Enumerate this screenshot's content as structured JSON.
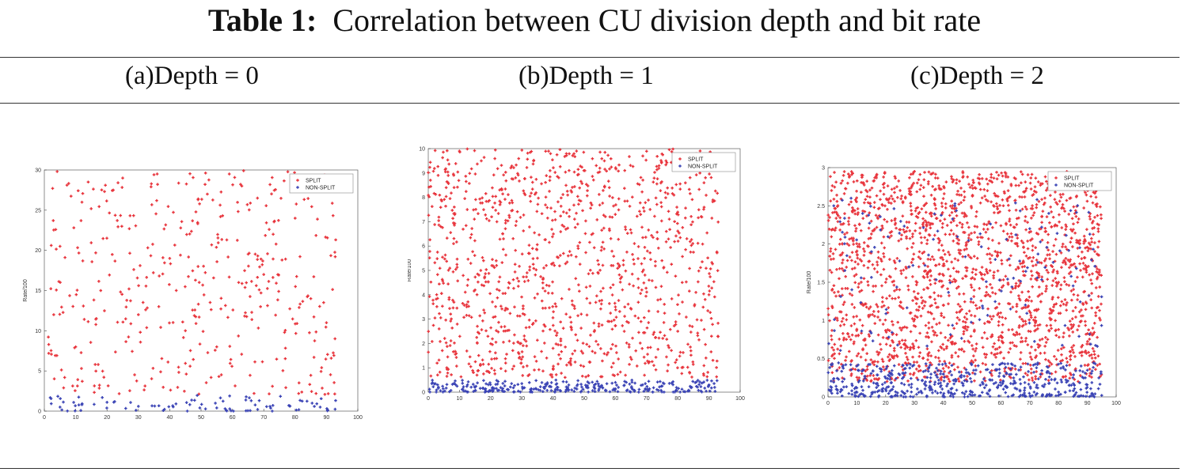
{
  "table": {
    "label": "Table 1:",
    "caption": "Correlation between CU division depth and bit rate",
    "columns": [
      "(a)Depth = 0",
      "(b)Depth = 1",
      "(c)Depth = 2"
    ]
  },
  "colors": {
    "split": "#e8343c",
    "non_split": "#3a43b5",
    "axis": "#444444"
  },
  "chart_data": [
    {
      "type": "scatter",
      "title": "",
      "xlabel": "",
      "ylabel": "Rate/100",
      "xlim": [
        0,
        100
      ],
      "ylim": [
        0,
        30
      ],
      "xticks": [
        0,
        10,
        20,
        30,
        40,
        50,
        60,
        70,
        80,
        90,
        100
      ],
      "yticks": [
        0,
        5,
        10,
        15,
        20,
        25,
        30
      ],
      "legend": {
        "position": "top-right",
        "entries": [
          "SPLIT",
          "NON-SPLIT"
        ]
      },
      "series": [
        {
          "name": "SPLIT",
          "n_points": 420,
          "x_range": [
            1,
            93
          ],
          "y_range": [
            2,
            30
          ],
          "sample": [
            [
              5,
              20.5
            ],
            [
              12,
              26
            ],
            [
              14,
              28.5
            ],
            [
              22,
              27.5
            ],
            [
              25,
              29
            ],
            [
              36,
              29.5
            ],
            [
              52,
              27
            ],
            [
              59,
              29.5
            ],
            [
              63,
              28
            ],
            [
              68,
              26.5
            ],
            [
              73,
              22
            ],
            [
              80,
              24
            ],
            [
              3,
              12
            ],
            [
              10,
              8
            ],
            [
              18,
              15
            ],
            [
              30,
              12
            ],
            [
              45,
              10
            ],
            [
              55,
              8
            ],
            [
              70,
              17
            ],
            [
              85,
              14
            ],
            [
              90,
              11
            ],
            [
              40,
              19
            ],
            [
              62,
              16
            ]
          ]
        },
        {
          "name": "NON-SPLIT",
          "n_points": 90,
          "x_range": [
            1,
            93
          ],
          "y_range": [
            0,
            2
          ],
          "sample": [
            [
              5,
              0.5
            ],
            [
              12,
              0.8
            ],
            [
              20,
              1.1
            ],
            [
              30,
              0.6
            ],
            [
              42,
              0.9
            ],
            [
              55,
              0.4
            ],
            [
              66,
              1.3
            ],
            [
              78,
              0.7
            ],
            [
              88,
              0.5
            ]
          ]
        }
      ]
    },
    {
      "type": "scatter",
      "title": "",
      "xlabel": "",
      "ylabel": "Rate/100",
      "xlim": [
        0,
        100
      ],
      "ylim": [
        0,
        10
      ],
      "xticks": [
        0,
        10,
        20,
        30,
        40,
        50,
        60,
        70,
        80,
        90,
        100
      ],
      "yticks": [
        0,
        1,
        2,
        3,
        4,
        5,
        6,
        7,
        8,
        9,
        10
      ],
      "legend": {
        "position": "top-right",
        "entries": [
          "SPLIT",
          "NON-SPLIT"
        ]
      },
      "series": [
        {
          "name": "SPLIT",
          "n_points": 1200,
          "x_range": [
            0,
            93
          ],
          "y_range": [
            0.6,
            10
          ],
          "sample": [
            [
              10,
              9.9
            ],
            [
              17,
              9.5
            ],
            [
              28,
              8.8
            ],
            [
              55,
              9.2
            ],
            [
              63,
              9.1
            ],
            [
              74,
              9.3
            ],
            [
              4,
              6.8
            ],
            [
              22,
              7
            ],
            [
              35,
              5.5
            ],
            [
              48,
              6
            ],
            [
              60,
              3.5
            ],
            [
              80,
              2.5
            ],
            [
              90,
              4
            ],
            [
              15,
              4.2
            ],
            [
              40,
              1.8
            ]
          ]
        },
        {
          "name": "NON-SPLIT",
          "n_points": 300,
          "x_range": [
            0,
            93
          ],
          "y_range": [
            0,
            0.5
          ],
          "sample": [
            [
              3,
              0.3
            ],
            [
              15,
              0.2
            ],
            [
              30,
              0.35
            ],
            [
              45,
              0.1
            ],
            [
              60,
              0.4
            ],
            [
              75,
              0.25
            ],
            [
              90,
              0.3
            ]
          ]
        }
      ]
    },
    {
      "type": "scatter",
      "title": "",
      "xlabel": "",
      "ylabel": "Rate/100",
      "xlim": [
        0,
        100
      ],
      "ylim": [
        0,
        3
      ],
      "xticks": [
        0,
        10,
        20,
        30,
        40,
        50,
        60,
        70,
        80,
        90,
        100
      ],
      "yticks": [
        0,
        0.5,
        1,
        1.5,
        2,
        2.5,
        3
      ],
      "legend": {
        "position": "top-right",
        "entries": [
          "SPLIT",
          "NON-SPLIT"
        ]
      },
      "series": [
        {
          "name": "SPLIT",
          "n_points": 2000,
          "x_range": [
            0,
            95
          ],
          "y_range": [
            0.2,
            2.95
          ],
          "sample": [
            [
              12,
              2.9
            ],
            [
              30,
              2.95
            ],
            [
              55,
              2.85
            ],
            [
              67,
              2.8
            ],
            [
              5,
              2
            ],
            [
              20,
              1.5
            ],
            [
              40,
              1.2
            ],
            [
              60,
              0.8
            ],
            [
              80,
              1.5
            ],
            [
              92,
              2.3
            ]
          ]
        },
        {
          "name": "NON-SPLIT",
          "n_points": 650,
          "x_range": [
            0,
            95
          ],
          "y_range": [
            0,
            2.7
          ],
          "sample": [
            [
              2,
              2.5
            ],
            [
              8,
              2.6
            ],
            [
              12,
              2.4
            ],
            [
              28,
              1.7
            ],
            [
              44,
              2.5
            ],
            [
              70,
              2.2
            ],
            [
              5,
              0.2
            ],
            [
              20,
              0.1
            ],
            [
              40,
              0.3
            ],
            [
              60,
              0.15
            ],
            [
              85,
              0.25
            ]
          ]
        }
      ]
    }
  ]
}
